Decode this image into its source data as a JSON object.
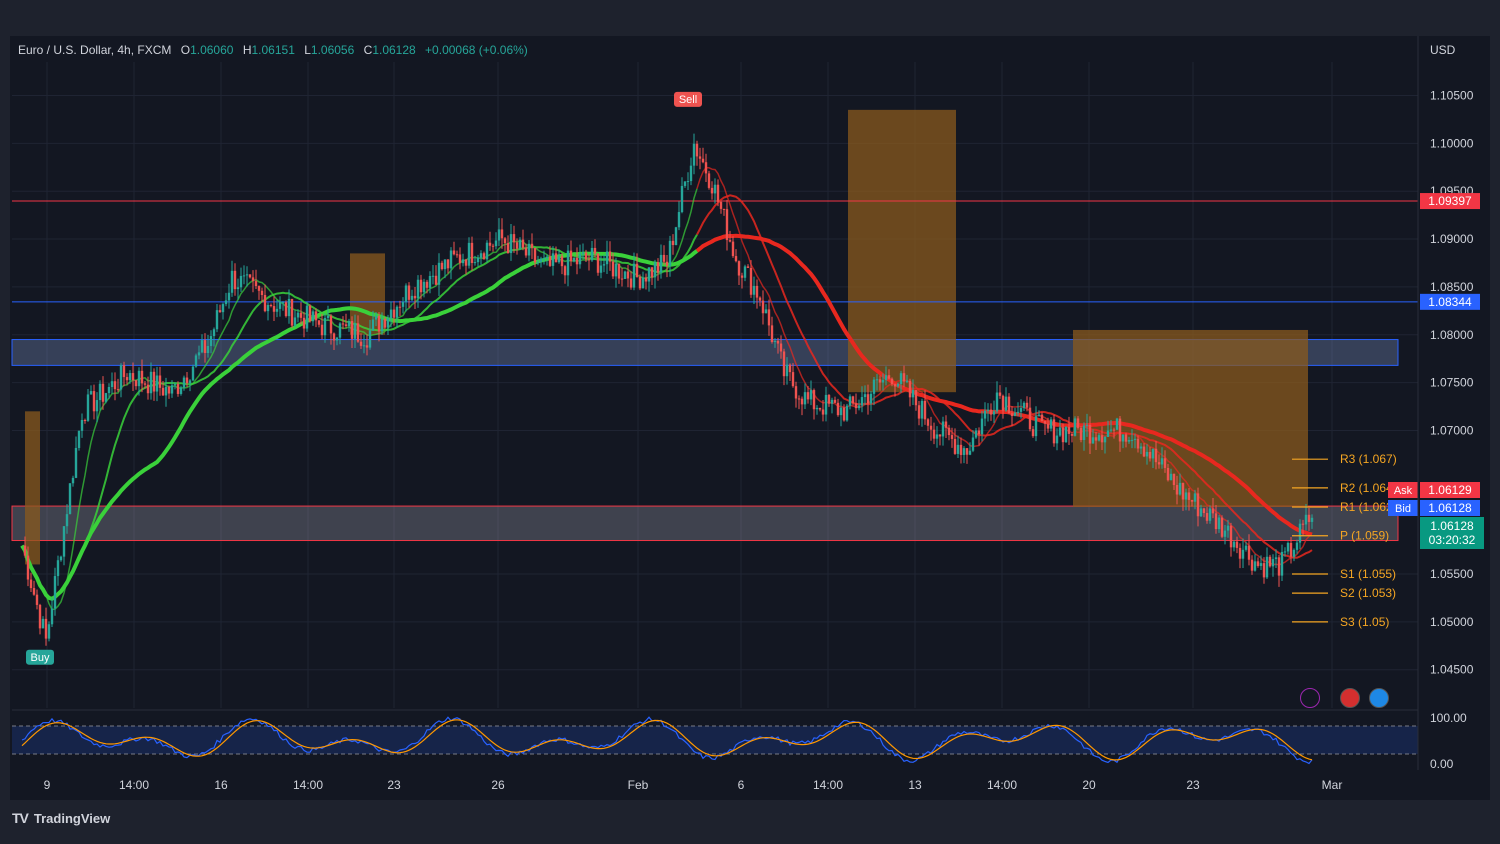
{
  "header": {
    "symbol": "Euro / U.S. Dollar, 4h, FXCM",
    "open_label": "O",
    "open": "1.06060",
    "high_label": "H",
    "high": "1.06151",
    "low_label": "L",
    "low": "1.06056",
    "close_label": "C",
    "close": "1.06128",
    "change": "+0.00068 (+0.06%)",
    "currency": "USD"
  },
  "brand": {
    "logo": "TV",
    "name": "TradingView"
  },
  "colors": {
    "bg": "#131722",
    "up": "#26a69a",
    "down": "#ef5350",
    "grid": "#1f2433",
    "green_ma": "#3ad13a",
    "red_ma": "#e8281f",
    "orange_cloud": "#8a5a1e",
    "resistance_line": "#f23645",
    "support_line": "#2962ff"
  },
  "chart_data": {
    "type": "candlestick",
    "ylim": [
      1.041,
      1.1085
    ],
    "y_ticks": [
      "1.10500",
      "1.10000",
      "1.09500",
      "1.09000",
      "1.08500",
      "1.08000",
      "1.07500",
      "1.07000",
      "1.05500",
      "1.05000",
      "1.04500"
    ],
    "x_ticks": [
      "9",
      "14:00",
      "16",
      "14:00",
      "23",
      "26",
      "Feb",
      "6",
      "14:00",
      "13",
      "14:00",
      "20",
      "23",
      "Mar"
    ],
    "close_path": [
      [
        0,
        1.058
      ],
      [
        8,
        1.048
      ],
      [
        20,
        1.072
      ],
      [
        35,
        1.076
      ],
      [
        50,
        1.074
      ],
      [
        62,
        1.079
      ],
      [
        70,
        1.086
      ],
      [
        85,
        1.083
      ],
      [
        100,
        1.081
      ],
      [
        115,
        1.08
      ],
      [
        130,
        1.085
      ],
      [
        145,
        1.088
      ],
      [
        160,
        1.09
      ],
      [
        175,
        1.087
      ],
      [
        190,
        1.088
      ],
      [
        205,
        1.086
      ],
      [
        215,
        1.0875
      ],
      [
        224,
        1.1
      ],
      [
        230,
        1.096
      ],
      [
        238,
        1.088
      ],
      [
        246,
        1.084
      ],
      [
        254,
        1.076
      ],
      [
        262,
        1.073
      ],
      [
        275,
        1.072
      ],
      [
        290,
        1.076
      ],
      [
        305,
        1.07
      ],
      [
        315,
        1.068
      ],
      [
        325,
        1.074
      ],
      [
        340,
        1.07
      ],
      [
        355,
        1.07
      ],
      [
        370,
        1.07
      ],
      [
        385,
        1.064
      ],
      [
        400,
        1.06
      ],
      [
        412,
        1.056
      ],
      [
        420,
        1.056
      ],
      [
        430,
        1.0612
      ]
    ],
    "series": [
      {
        "name": "Ask",
        "value": "1.06129"
      },
      {
        "name": "Bid",
        "value": "1.06128"
      }
    ],
    "resistance_level": "1.09397",
    "support_level": "1.08344",
    "last_price": "1.06128",
    "countdown": "03:20:32",
    "pivots": [
      {
        "label": "R3 (1.067)",
        "value": 1.067
      },
      {
        "label": "R2 (1.064)",
        "value": 1.064
      },
      {
        "label": "R1 (1.062)",
        "value": 1.062
      },
      {
        "label": "P (1.059)",
        "value": 1.059
      },
      {
        "label": "S1 (1.055)",
        "value": 1.055
      },
      {
        "label": "S2 (1.053)",
        "value": 1.053
      },
      {
        "label": "S3 (1.05)",
        "value": 1.05
      }
    ],
    "signals": [
      {
        "label": "Sell",
        "bar": 222,
        "price": 1.1035
      },
      {
        "label": "Buy",
        "bar": 6,
        "price": 1.0475
      }
    ],
    "oscillator_ticks": [
      "100.00",
      "0.00"
    ]
  }
}
